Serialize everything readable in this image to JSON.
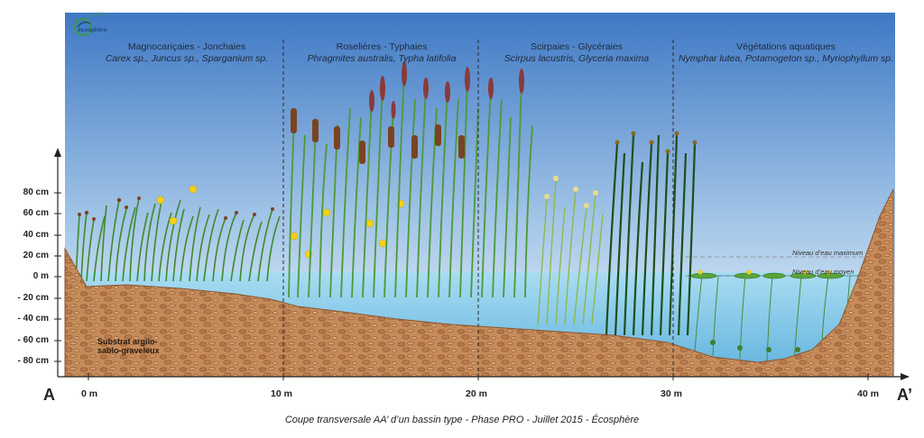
{
  "logo": {
    "text": "écosphère",
    "icon": "ecosphere-logo-icon"
  },
  "zones": [
    {
      "title": "Magnocariçaies - Jonchaies",
      "species": "Carex sp., Juncus sp., Sparganium sp."
    },
    {
      "title": "Roselières - Typhaies",
      "species": "Phragmites australis, Typha latifolia"
    },
    {
      "title": "Scirpaies - Glycéraies",
      "species": "Scirpus lacustris, Glyceria maxima"
    },
    {
      "title": "Végétations aquatiques",
      "species": "Nymphar lutea, Potamogeton sp., Myriophyllum sp."
    }
  ],
  "y_axis": {
    "ticks": [
      "80 cm",
      "60 cm",
      "40 cm",
      "20 cm",
      "0 m",
      "- 20 cm",
      "- 40 cm",
      "- 60 cm",
      "- 80 cm"
    ]
  },
  "x_axis": {
    "ticks": [
      "0 m",
      "10 m",
      "20 m",
      "30 m",
      "40 m"
    ],
    "start_label": "A",
    "end_label": "A’"
  },
  "water_levels": {
    "max": "Niveau d’eau maximum",
    "mean": "Niveau d’eau moyen"
  },
  "substrate": {
    "line1": "Substrat argilo-",
    "line2": "sablo-graveleux"
  },
  "caption": "Coupe transversale AA’ d’un bassin type - Phase PRO - Juillet 2015 - Écosphère",
  "colors": {
    "sky_top": "#3f78c4",
    "sky_bottom": "#eaf3fb",
    "water": "#7fc3e6",
    "soil": "#c68b5a",
    "soil_dark": "#8a5630",
    "reed": "#3f8a2e",
    "typha_head": "#7a4322",
    "iris": "#f2d21a"
  }
}
